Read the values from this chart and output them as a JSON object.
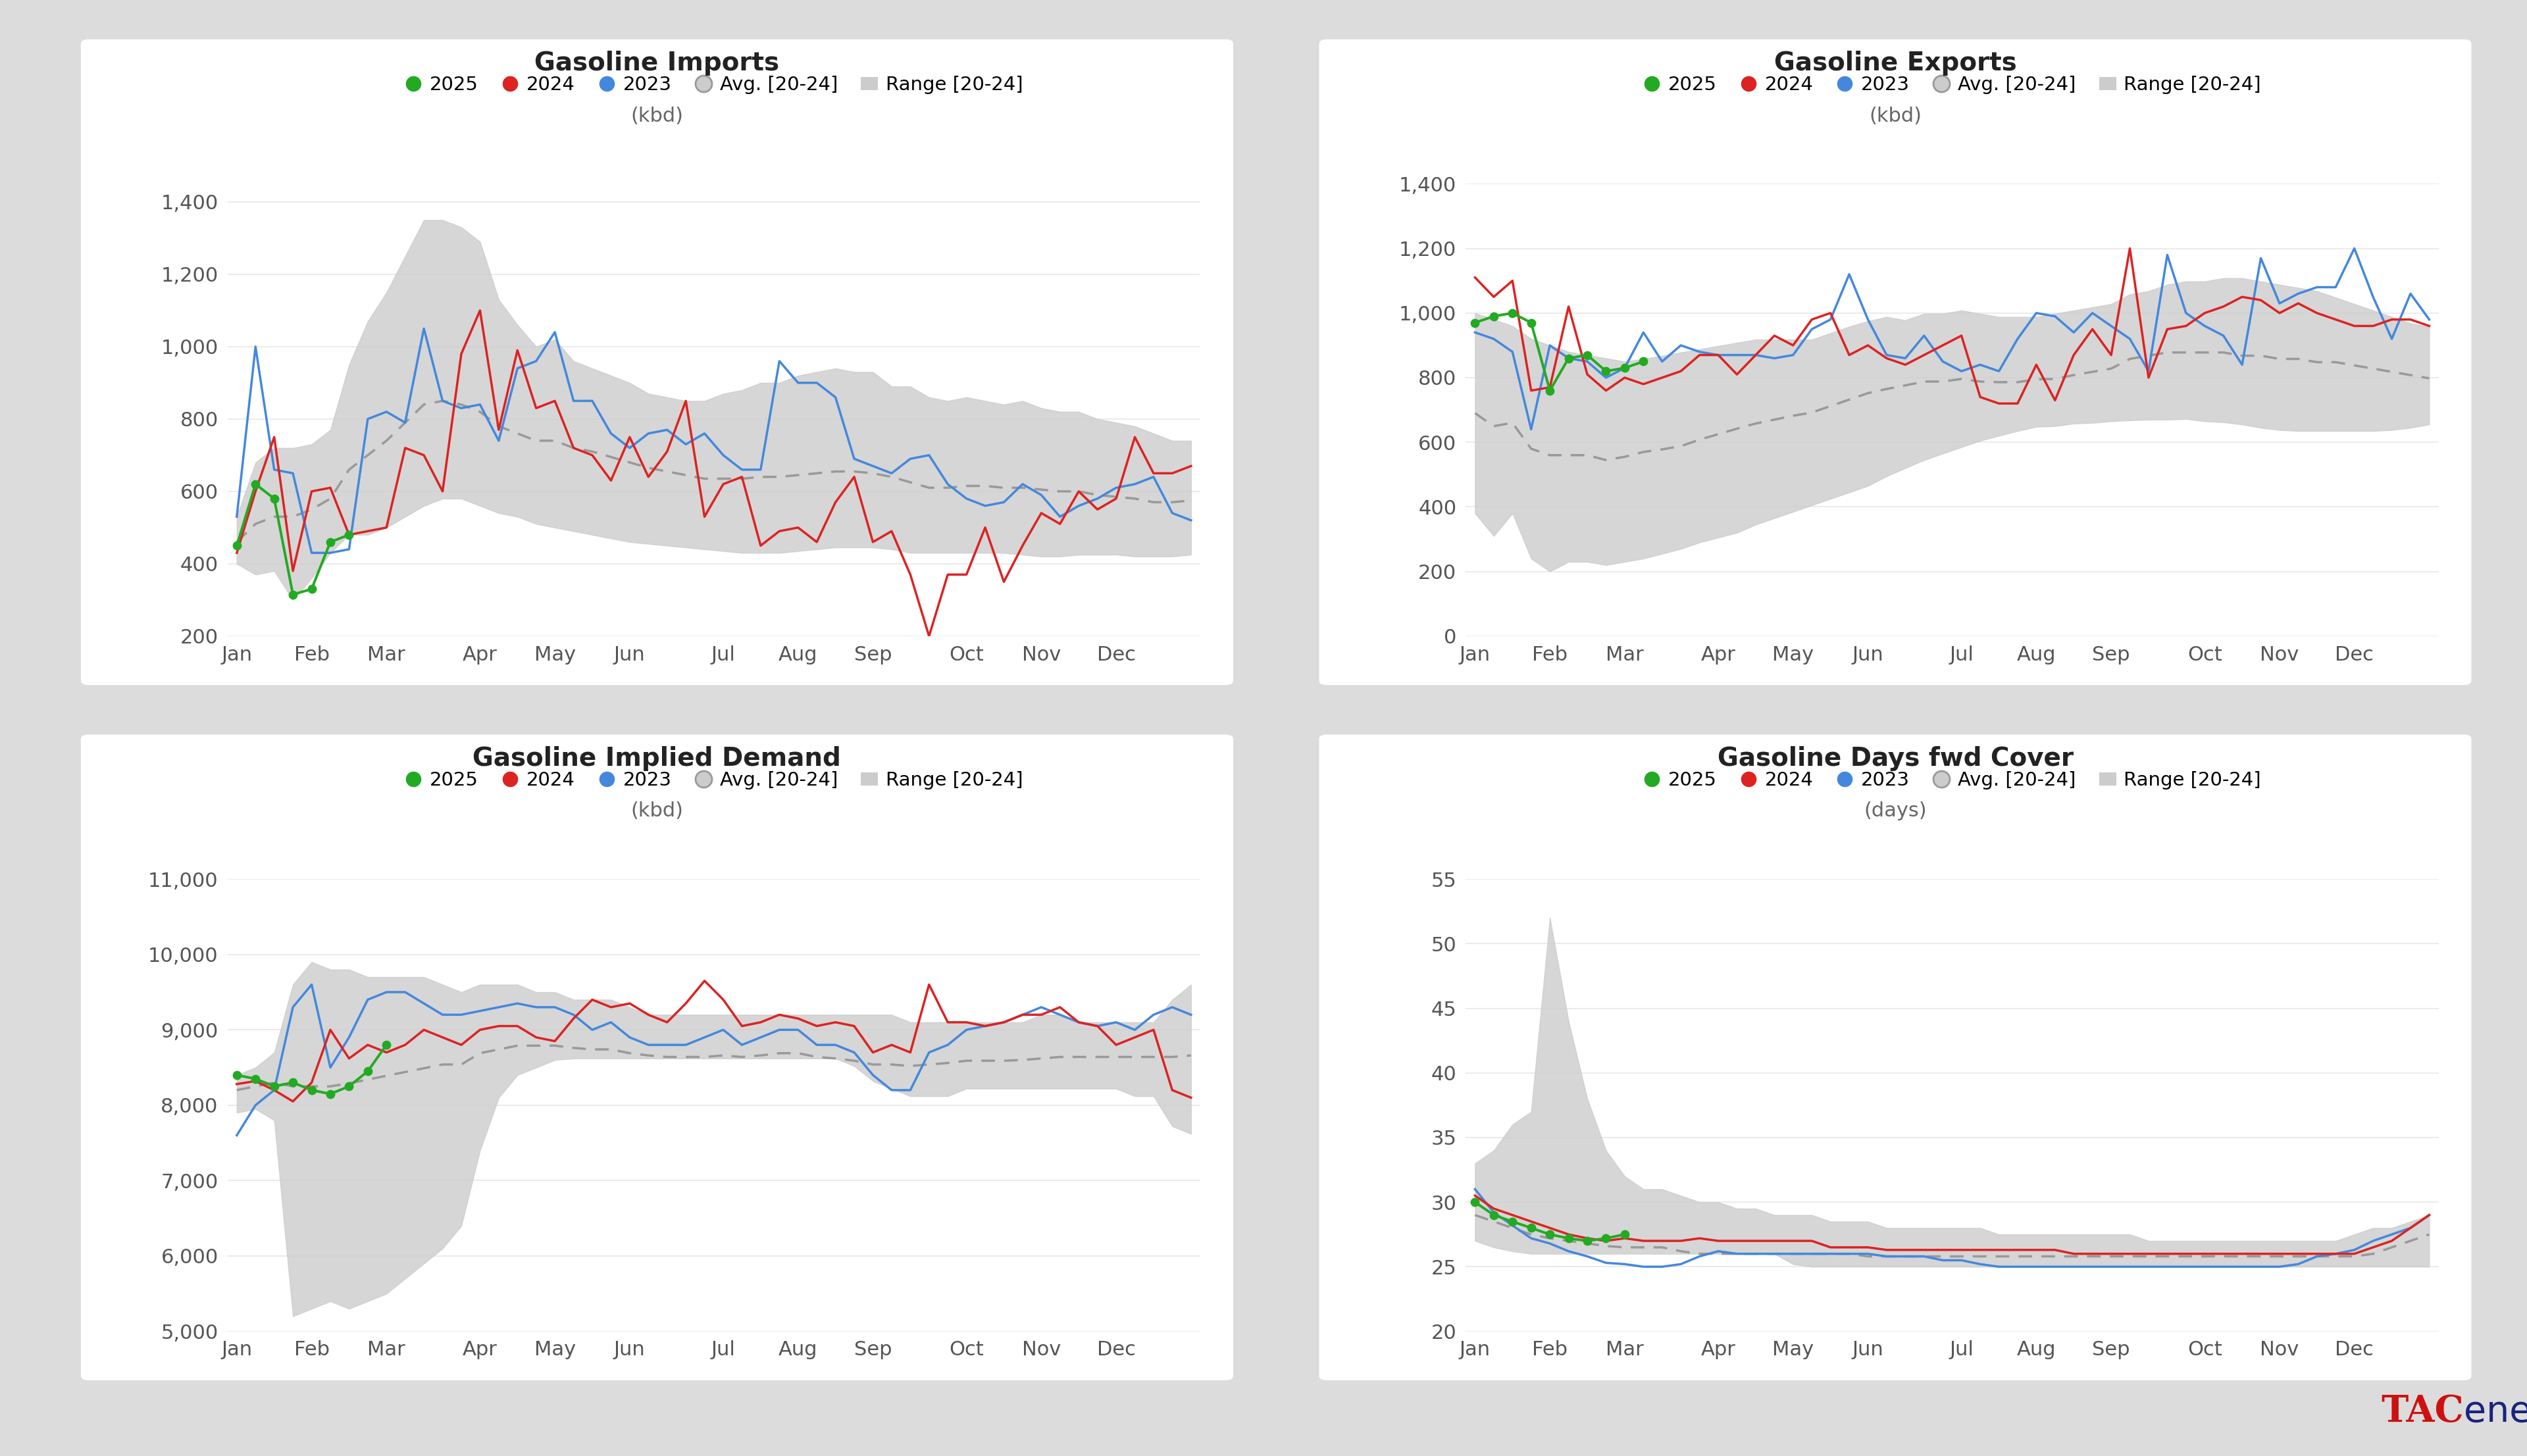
{
  "bg_color": "#e8e8e8",
  "panel_color": "#ffffff",
  "charts": [
    {
      "title": "Gasoline Imports",
      "subtitle": "(kbd)",
      "ylim": [
        200,
        1450
      ],
      "yticks": [
        200,
        400,
        600,
        800,
        1000,
        1200,
        1400
      ],
      "y2025": [
        450,
        620,
        580,
        315,
        330,
        460,
        480,
        null,
        null,
        null,
        null,
        null,
        null,
        null,
        null,
        null,
        null,
        null,
        null,
        null,
        null,
        null,
        null,
        null,
        null,
        null,
        null,
        null,
        null,
        null,
        null,
        null,
        null,
        null,
        null,
        null,
        null,
        null,
        null,
        null,
        null,
        null,
        null,
        null,
        null,
        null,
        null,
        null,
        null,
        null,
        null,
        null
      ],
      "y2024": [
        430,
        600,
        750,
        380,
        600,
        610,
        480,
        490,
        500,
        720,
        700,
        600,
        980,
        1100,
        770,
        990,
        830,
        850,
        720,
        700,
        630,
        750,
        640,
        710,
        850,
        530,
        620,
        640,
        450,
        490,
        500,
        460,
        570,
        640,
        460,
        490,
        370,
        200,
        370,
        370,
        500,
        350,
        450,
        540,
        510,
        600,
        550,
        580,
        750,
        650,
        650,
        670
      ],
      "y2023": [
        530,
        1000,
        660,
        650,
        430,
        430,
        440,
        800,
        820,
        790,
        1050,
        850,
        830,
        840,
        740,
        940,
        960,
        1040,
        850,
        850,
        760,
        720,
        760,
        770,
        730,
        760,
        700,
        660,
        660,
        960,
        900,
        900,
        860,
        690,
        670,
        650,
        690,
        700,
        620,
        580,
        560,
        570,
        620,
        590,
        530,
        560,
        580,
        610,
        620,
        640,
        540,
        520
      ],
      "range_low": [
        400,
        370,
        380,
        300,
        360,
        430,
        480,
        480,
        500,
        530,
        560,
        580,
        580,
        560,
        540,
        530,
        510,
        500,
        490,
        480,
        470,
        460,
        455,
        450,
        445,
        440,
        435,
        430,
        430,
        430,
        435,
        440,
        445,
        445,
        445,
        440,
        430,
        430,
        430,
        430,
        430,
        430,
        425,
        420,
        420,
        425,
        425,
        425,
        420,
        420,
        420,
        425
      ],
      "range_high": [
        530,
        680,
        720,
        720,
        730,
        770,
        950,
        1070,
        1150,
        1250,
        1350,
        1350,
        1330,
        1290,
        1130,
        1060,
        1000,
        1020,
        960,
        940,
        920,
        900,
        870,
        860,
        850,
        850,
        870,
        880,
        900,
        900,
        920,
        930,
        940,
        930,
        930,
        890,
        890,
        860,
        850,
        860,
        850,
        840,
        850,
        830,
        820,
        820,
        800,
        790,
        780,
        760,
        740,
        740
      ],
      "avg": [
        460,
        510,
        530,
        530,
        550,
        580,
        660,
        700,
        740,
        790,
        840,
        850,
        840,
        820,
        780,
        760,
        740,
        740,
        720,
        710,
        695,
        680,
        665,
        655,
        645,
        635,
        635,
        635,
        640,
        640,
        645,
        650,
        655,
        655,
        650,
        640,
        625,
        610,
        610,
        615,
        615,
        610,
        610,
        605,
        600,
        600,
        590,
        585,
        580,
        570,
        570,
        575
      ]
    },
    {
      "title": "Gasoline Exports",
      "subtitle": "(kbd)",
      "ylim": [
        0,
        1400
      ],
      "yticks": [
        0,
        200,
        400,
        600,
        800,
        1000,
        1200,
        1400
      ],
      "y2025": [
        970,
        990,
        1000,
        970,
        760,
        860,
        870,
        820,
        830,
        850,
        null,
        null,
        null,
        null,
        null,
        null,
        null,
        null,
        null,
        null,
        null,
        null,
        null,
        null,
        null,
        null,
        null,
        null,
        null,
        null,
        null,
        null,
        null,
        null,
        null,
        null,
        null,
        null,
        null,
        null,
        null,
        null,
        null,
        null,
        null,
        null,
        null,
        null,
        null,
        null,
        null,
        null
      ],
      "y2024": [
        1110,
        1050,
        1100,
        760,
        770,
        1020,
        810,
        760,
        800,
        780,
        800,
        820,
        870,
        870,
        810,
        870,
        930,
        900,
        980,
        1000,
        870,
        900,
        860,
        840,
        870,
        900,
        930,
        740,
        720,
        720,
        840,
        730,
        870,
        950,
        870,
        1200,
        800,
        950,
        960,
        1000,
        1020,
        1050,
        1040,
        1000,
        1030,
        1000,
        980,
        960,
        960,
        980,
        980,
        960
      ],
      "y2023": [
        940,
        920,
        880,
        640,
        900,
        860,
        850,
        800,
        830,
        940,
        850,
        900,
        880,
        870,
        870,
        870,
        860,
        870,
        950,
        980,
        1120,
        980,
        870,
        860,
        930,
        850,
        820,
        840,
        820,
        920,
        1000,
        990,
        940,
        1000,
        960,
        920,
        820,
        1180,
        1000,
        960,
        930,
        840,
        1170,
        1030,
        1060,
        1080,
        1080,
        1200,
        1050,
        920,
        1060,
        980
      ],
      "range_low": [
        380,
        310,
        380,
        240,
        200,
        230,
        230,
        220,
        230,
        240,
        255,
        270,
        290,
        305,
        320,
        345,
        365,
        385,
        405,
        425,
        445,
        465,
        495,
        520,
        545,
        565,
        585,
        605,
        620,
        635,
        648,
        650,
        658,
        660,
        665,
        668,
        670,
        670,
        672,
        665,
        662,
        655,
        645,
        638,
        635,
        635,
        635,
        635,
        635,
        638,
        645,
        655
      ],
      "range_high": [
        1000,
        980,
        960,
        920,
        900,
        880,
        870,
        860,
        850,
        858,
        868,
        878,
        888,
        898,
        908,
        918,
        918,
        918,
        918,
        938,
        958,
        975,
        988,
        978,
        998,
        998,
        1008,
        998,
        988,
        988,
        988,
        998,
        1008,
        1018,
        1028,
        1058,
        1068,
        1088,
        1098,
        1098,
        1108,
        1108,
        1098,
        1088,
        1078,
        1068,
        1048,
        1028,
        1008,
        988,
        968,
        958
      ],
      "avg": [
        690,
        650,
        660,
        580,
        560,
        560,
        560,
        545,
        555,
        570,
        578,
        588,
        608,
        625,
        642,
        658,
        670,
        682,
        692,
        712,
        732,
        752,
        765,
        776,
        788,
        788,
        796,
        788,
        786,
        786,
        795,
        796,
        808,
        818,
        828,
        858,
        868,
        878,
        878,
        878,
        878,
        868,
        868,
        858,
        858,
        848,
        848,
        838,
        828,
        818,
        808,
        798
      ]
    },
    {
      "title": "Gasoline Implied Demand",
      "subtitle": "(kbd)",
      "ylim": [
        5000,
        11000
      ],
      "yticks": [
        5000,
        6000,
        7000,
        8000,
        9000,
        10000,
        11000
      ],
      "y2025": [
        8400,
        8350,
        8250,
        8300,
        8200,
        8150,
        8250,
        8450,
        8800,
        null,
        null,
        null,
        null,
        null,
        null,
        null,
        null,
        null,
        null,
        null,
        null,
        null,
        null,
        null,
        null,
        null,
        null,
        null,
        null,
        null,
        null,
        null,
        null,
        null,
        null,
        null,
        null,
        null,
        null,
        null,
        null,
        null,
        null,
        null,
        null,
        null,
        null,
        null,
        null,
        null,
        null,
        null
      ],
      "y2024": [
        8280,
        8320,
        8200,
        8050,
        8300,
        9000,
        8620,
        8800,
        8700,
        8800,
        9000,
        8900,
        8800,
        9000,
        9050,
        9050,
        8900,
        8850,
        9150,
        9400,
        9300,
        9350,
        9200,
        9100,
        9350,
        9650,
        9400,
        9050,
        9100,
        9200,
        9150,
        9050,
        9100,
        9050,
        8700,
        8800,
        8700,
        9600,
        9100,
        9100,
        9050,
        9100,
        9200,
        9200,
        9300,
        9100,
        9050,
        8800,
        8900,
        9000,
        8200,
        8100
      ],
      "y2023": [
        7600,
        8000,
        8200,
        9300,
        9600,
        8500,
        8900,
        9400,
        9500,
        9500,
        9350,
        9200,
        9200,
        9250,
        9300,
        9350,
        9300,
        9300,
        9200,
        9000,
        9100,
        8900,
        8800,
        8800,
        8800,
        8900,
        9000,
        8800,
        8900,
        9000,
        9000,
        8800,
        8800,
        8700,
        8400,
        8200,
        8200,
        8700,
        8800,
        9000,
        9050,
        9100,
        9200,
        9300,
        9200,
        9100,
        9050,
        9100,
        9000,
        9200,
        9300,
        9200
      ],
      "range_low": [
        7900,
        7950,
        7800,
        5200,
        5300,
        5400,
        5300,
        5400,
        5500,
        5700,
        5900,
        6100,
        6400,
        7400,
        8100,
        8400,
        8500,
        8600,
        8620,
        8620,
        8620,
        8620,
        8620,
        8620,
        8620,
        8620,
        8620,
        8620,
        8620,
        8620,
        8620,
        8620,
        8620,
        8520,
        8320,
        8220,
        8120,
        8120,
        8120,
        8220,
        8220,
        8220,
        8220,
        8220,
        8220,
        8220,
        8220,
        8220,
        8120,
        8120,
        7720,
        7620
      ],
      "range_high": [
        8400,
        8500,
        8700,
        9600,
        9900,
        9800,
        9800,
        9700,
        9700,
        9700,
        9700,
        9600,
        9500,
        9600,
        9600,
        9600,
        9500,
        9500,
        9400,
        9400,
        9400,
        9300,
        9200,
        9200,
        9200,
        9200,
        9200,
        9200,
        9200,
        9200,
        9200,
        9200,
        9200,
        9200,
        9200,
        9200,
        9100,
        9100,
        9100,
        9100,
        9100,
        9100,
        9100,
        9200,
        9200,
        9100,
        9100,
        9100,
        9100,
        9100,
        9400,
        9600
      ],
      "avg": [
        8200,
        8250,
        8300,
        8250,
        8250,
        8250,
        8290,
        8340,
        8390,
        8440,
        8490,
        8540,
        8540,
        8690,
        8740,
        8790,
        8790,
        8790,
        8760,
        8740,
        8740,
        8690,
        8660,
        8640,
        8640,
        8640,
        8660,
        8640,
        8660,
        8690,
        8690,
        8640,
        8620,
        8590,
        8540,
        8540,
        8520,
        8540,
        8560,
        8590,
        8590,
        8590,
        8600,
        8620,
        8640,
        8640,
        8640,
        8640,
        8640,
        8640,
        8640,
        8660
      ]
    },
    {
      "title": "Gasoline Days fwd Cover",
      "subtitle": "(days)",
      "ylim": [
        20,
        55
      ],
      "yticks": [
        20,
        25,
        30,
        35,
        40,
        45,
        50,
        55
      ],
      "y2025": [
        30,
        29,
        28.5,
        28,
        27.5,
        27.2,
        27,
        27.2,
        27.5,
        null,
        null,
        null,
        null,
        null,
        null,
        null,
        null,
        null,
        null,
        null,
        null,
        null,
        null,
        null,
        null,
        null,
        null,
        null,
        null,
        null,
        null,
        null,
        null,
        null,
        null,
        null,
        null,
        null,
        null,
        null,
        null,
        null,
        null,
        null,
        null,
        null,
        null,
        null,
        null,
        null,
        null,
        null
      ],
      "y2024": [
        30.5,
        29.5,
        29,
        28.5,
        28,
        27.5,
        27.2,
        27,
        27.2,
        27,
        27,
        27,
        27.2,
        27,
        27,
        27,
        27,
        27,
        27,
        26.5,
        26.5,
        26.5,
        26.3,
        26.3,
        26.3,
        26.3,
        26.3,
        26.3,
        26.3,
        26.3,
        26.3,
        26.3,
        26,
        26,
        26,
        26,
        26,
        26,
        26,
        26,
        26,
        26,
        26,
        26,
        26,
        26,
        26,
        26,
        26.5,
        27,
        28,
        29
      ],
      "y2023": [
        31,
        29.2,
        28.2,
        27.2,
        26.8,
        26.2,
        25.8,
        25.3,
        25.2,
        25,
        25,
        25.2,
        25.8,
        26.2,
        26,
        26,
        26,
        26,
        26,
        26,
        26,
        26,
        25.8,
        25.8,
        25.8,
        25.5,
        25.5,
        25.2,
        25,
        25,
        25,
        25,
        25,
        25,
        25,
        25,
        25,
        25,
        25,
        25,
        25,
        25,
        25,
        25,
        25.2,
        25.8,
        26,
        26.3,
        27,
        27.5,
        28,
        29
      ],
      "range_low": [
        27,
        26.5,
        26.2,
        26,
        26,
        26,
        26,
        26,
        26,
        26,
        26,
        26,
        26,
        26,
        26,
        26,
        26,
        25.2,
        25,
        25,
        25,
        25,
        25,
        25,
        25,
        25,
        25,
        25,
        25,
        25,
        25,
        25,
        25,
        25,
        25,
        25,
        25,
        25,
        25,
        25,
        25,
        25,
        25,
        25,
        25,
        25,
        25,
        25,
        25,
        25,
        25,
        25
      ],
      "range_high": [
        33,
        34,
        36,
        37,
        52,
        44,
        38,
        34,
        32,
        31,
        31,
        30.5,
        30,
        30,
        29.5,
        29.5,
        29,
        29,
        29,
        28.5,
        28.5,
        28.5,
        28,
        28,
        28,
        28,
        28,
        28,
        27.5,
        27.5,
        27.5,
        27.5,
        27.5,
        27.5,
        27.5,
        27.5,
        27,
        27,
        27,
        27,
        27,
        27,
        27,
        27,
        27,
        27,
        27,
        27.5,
        28,
        28,
        28.5,
        29
      ],
      "avg": [
        29,
        28.5,
        28,
        27.5,
        27.2,
        27,
        26.8,
        26.6,
        26.5,
        26.5,
        26.5,
        26.2,
        26,
        26,
        26,
        26,
        26,
        26,
        26,
        26,
        26,
        25.8,
        25.8,
        25.8,
        25.8,
        25.8,
        25.8,
        25.8,
        25.8,
        25.8,
        25.8,
        25.8,
        25.8,
        25.8,
        25.8,
        25.8,
        25.8,
        25.8,
        25.8,
        25.8,
        25.8,
        25.8,
        25.8,
        25.8,
        25.8,
        25.8,
        25.8,
        25.8,
        26,
        26.5,
        27,
        27.5
      ]
    }
  ],
  "color_2025": "#22aa22",
  "color_2024": "#dd2222",
  "color_2023": "#4488dd",
  "color_avg": "#999999",
  "color_range": "#cccccc",
  "months": [
    "Jan",
    "Feb",
    "Mar",
    "Apr",
    "May",
    "Jun",
    "Jul",
    "Aug",
    "Sep",
    "Oct",
    "Nov",
    "Dec"
  ],
  "n_weeks": 52,
  "month_ticks": [
    0,
    4,
    8,
    13,
    17,
    21,
    26,
    30,
    34,
    39,
    43,
    47
  ]
}
